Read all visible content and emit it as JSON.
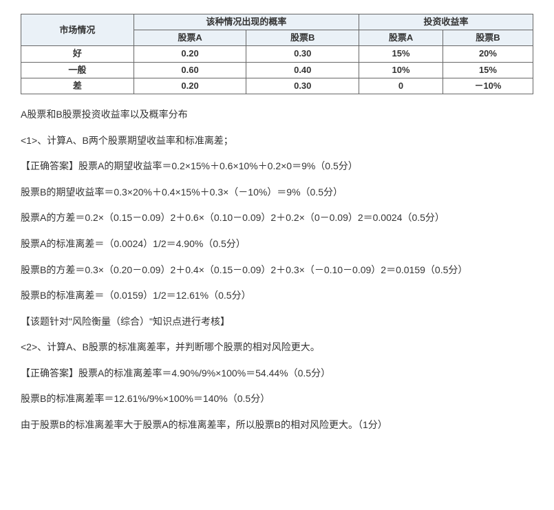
{
  "table": {
    "header_market": "市场情况",
    "header_prob": "该种情况出现的概率",
    "header_return": "投资收益率",
    "sub_stock_a": "股票A",
    "sub_stock_b": "股票B",
    "rows": [
      {
        "market": "好",
        "pa": "0.20",
        "pb": "0.30",
        "ra": "15%",
        "rb": "20%"
      },
      {
        "market": "一般",
        "pa": "0.60",
        "pb": "0.40",
        "ra": "10%",
        "rb": "15%"
      },
      {
        "market": "差",
        "pa": "0.20",
        "pb": "0.30",
        "ra": "0",
        "rb": "－10%"
      }
    ]
  },
  "lines": {
    "intro": "A股票和B股票投资收益率以及概率分布",
    "q1": "<1>、计算A、B两个股票期望收益率和标准离差；",
    "ans1_eA": "【正确答案】股票A的期望收益率＝0.2×15%＋0.6×10%＋0.2×0＝9%（0.5分）",
    "ans1_eB": "股票B的期望收益率＝0.3×20%＋0.4×15%＋0.3×（－10%）＝9%（0.5分）",
    "ans1_varA": "股票A的方差＝0.2×（0.15－0.09）2＋0.6×（0.10－0.09）2＋0.2×（0－0.09）2＝0.0024（0.5分）",
    "ans1_sdA": "股票A的标准离差＝（0.0024）1/2＝4.90%（0.5分）",
    "ans1_varB": "股票B的方差＝0.3×（0.20－0.09）2＋0.4×（0.15－0.09）2＋0.3×（－0.10－0.09）2＝0.0159（0.5分）",
    "ans1_sdB": "股票B的标准离差＝（0.0159）1/2＝12.61%（0.5分）",
    "note1": "【该题针对\"风险衡量（综合）\"知识点进行考核】",
    "q2": "<2>、计算A、B股票的标准离差率，并判断哪个股票的相对风险更大。",
    "ans2_cvA": "【正确答案】股票A的标准离差率＝4.90%/9%×100%＝54.44%（0.5分）",
    "ans2_cvB": "股票B的标准离差率＝12.61%/9%×100%＝140%（0.5分）",
    "conclusion": "由于股票B的标准离差率大于股票A的标准离差率，所以股票B的相对风险更大。（1分）"
  }
}
